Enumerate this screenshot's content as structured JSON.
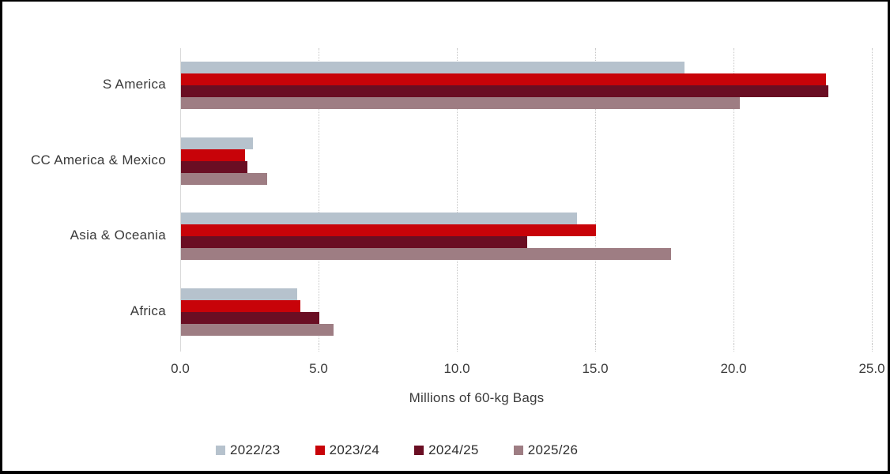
{
  "chart_data": {
    "type": "bar",
    "orientation": "horizontal",
    "title": "",
    "xlabel": "Millions of 60-kg Bags",
    "categories": [
      "S America",
      "CC America & Mexico",
      "Asia & Oceania",
      "Africa"
    ],
    "series": [
      {
        "name": "2022/23",
        "color": "#b6c2cd",
        "values": [
          18.2,
          2.6,
          14.3,
          4.2
        ]
      },
      {
        "name": "2023/24",
        "color": "#c80309",
        "values": [
          23.3,
          2.3,
          15.0,
          4.3
        ]
      },
      {
        "name": "2024/25",
        "color": "#6a0e23",
        "values": [
          23.4,
          2.4,
          12.5,
          5.0
        ]
      },
      {
        "name": "2025/26",
        "color": "#9e7d83",
        "values": [
          20.2,
          3.1,
          17.7,
          5.5
        ]
      }
    ],
    "xlim": [
      0,
      25
    ],
    "xticks": [
      0,
      5,
      10,
      15,
      20,
      25
    ],
    "xtick_labels": [
      "0.0",
      "5.0",
      "10.0",
      "15.0",
      "20.0",
      "25.0"
    ],
    "grid": "vertical dotted gridlines",
    "legend_position": "bottom"
  },
  "colors": {
    "background": "#ffffff",
    "frame_border": "#000000",
    "axis_line": "#d9d9d9",
    "gridline": "#c6c6c6",
    "text": "#3a3a3a"
  }
}
